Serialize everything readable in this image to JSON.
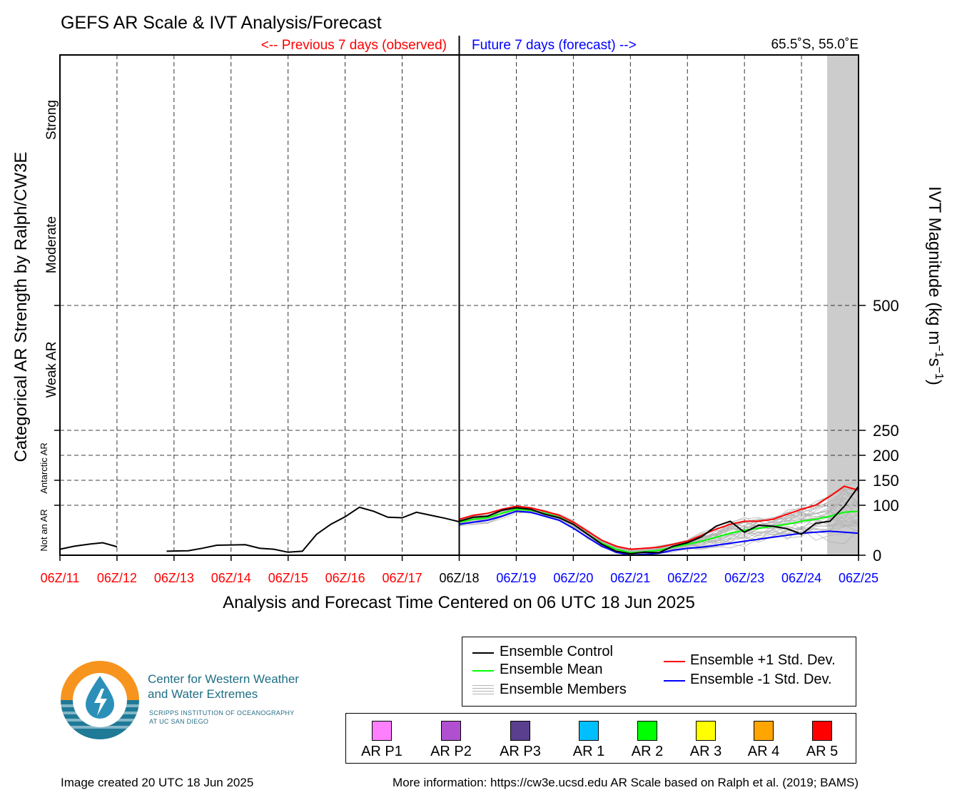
{
  "title": "GEFS AR Scale & IVT Analysis/Forecast",
  "header": {
    "previous_label": "<-- Previous 7 days (observed)",
    "future_label": "Future 7 days (forecast) -->",
    "location": "65.5˚S, 55.0˚E"
  },
  "colors": {
    "previous": "#ff0000",
    "future": "#0000ff",
    "control": "#000000",
    "mean": "#00ff00",
    "plus_std": "#ff0000",
    "minus_std": "#0000ff",
    "members": "#b4b4b4",
    "shade": "#cccccc"
  },
  "chart_data": {
    "type": "line",
    "xlabel": "Analysis and Forecast Time Centered on 06 UTC 18 Jun 2025",
    "ylabel_left": "Categorical AR Strength by Ralph/CW3E",
    "ylabel_right_main": "IVT Magnitude (kg m",
    "ylabel_right_exp1": "−1",
    "ylabel_right_mid": "s",
    "ylabel_right_exp2": "−1",
    "ylabel_right_end": ")",
    "x_unit": "days since 06Z/11",
    "xlim": [
      0,
      14
    ],
    "ylim": [
      0,
      1000
    ],
    "grid": true,
    "x_ticks": [
      {
        "label": "06Z/11",
        "kind": "previous"
      },
      {
        "label": "06Z/12",
        "kind": "previous"
      },
      {
        "label": "06Z/13",
        "kind": "previous"
      },
      {
        "label": "06Z/14",
        "kind": "previous"
      },
      {
        "label": "06Z/15",
        "kind": "previous"
      },
      {
        "label": "06Z/16",
        "kind": "previous"
      },
      {
        "label": "06Z/17",
        "kind": "previous"
      },
      {
        "label": "06Z/18",
        "kind": "current"
      },
      {
        "label": "06Z/19",
        "kind": "future"
      },
      {
        "label": "06Z/20",
        "kind": "future"
      },
      {
        "label": "06Z/21",
        "kind": "future"
      },
      {
        "label": "06Z/22",
        "kind": "future"
      },
      {
        "label": "06Z/23",
        "kind": "future"
      },
      {
        "label": "06Z/24",
        "kind": "future"
      },
      {
        "label": "06Z/25",
        "kind": "future"
      }
    ],
    "y_right_ticks": [
      {
        "value": 0,
        "label": "0"
      },
      {
        "value": 100,
        "label": "100"
      },
      {
        "value": 150,
        "label": "150"
      },
      {
        "value": 200,
        "label": "200"
      },
      {
        "value": 250,
        "label": "250"
      },
      {
        "value": 500,
        "label": "500"
      }
    ],
    "y_categories": [
      {
        "label": "Not an AR",
        "y": 50,
        "size": "small"
      },
      {
        "label": "Antarctic AR",
        "y": 150,
        "size": "small"
      },
      {
        "label": "Weak AR",
        "y": 375,
        "size": "large"
      },
      {
        "label": "Moderate",
        "y": 625,
        "size": "large"
      },
      {
        "label": "Strong",
        "y": 875,
        "size": "large"
      }
    ],
    "forecast_start_x": 7,
    "shaded_region": [
      13.45,
      14
    ],
    "observed": [
      {
        "x": 0,
        "y": 12
      },
      {
        "x": 0.25,
        "y": 18
      },
      {
        "x": 0.5,
        "y": 22
      },
      {
        "x": 0.75,
        "y": 25
      },
      {
        "x": 1.0,
        "y": 17
      },
      {
        "x": 1.25,
        "y": null
      },
      {
        "x": 1.5,
        "y": null
      },
      {
        "x": 1.75,
        "y": null
      },
      {
        "x": 1.87,
        "y": 8
      },
      {
        "x": 2.25,
        "y": 9
      },
      {
        "x": 2.5,
        "y": 14
      },
      {
        "x": 2.75,
        "y": 20
      },
      {
        "x": 3.25,
        "y": 21
      },
      {
        "x": 3.5,
        "y": 14
      },
      {
        "x": 3.75,
        "y": 12
      },
      {
        "x": 4.0,
        "y": 6
      },
      {
        "x": 4.25,
        "y": 8
      },
      {
        "x": 4.5,
        "y": 42
      },
      {
        "x": 4.75,
        "y": 62
      },
      {
        "x": 5.0,
        "y": 77
      },
      {
        "x": 5.25,
        "y": 96
      },
      {
        "x": 5.5,
        "y": 88
      },
      {
        "x": 5.75,
        "y": 76
      },
      {
        "x": 6.0,
        "y": 75
      },
      {
        "x": 6.25,
        "y": 86
      },
      {
        "x": 6.5,
        "y": 80
      },
      {
        "x": 6.75,
        "y": 74
      },
      {
        "x": 7.0,
        "y": 67
      }
    ],
    "series": [
      {
        "name": "Ensemble Control",
        "color_key": "control",
        "x": [
          7.0,
          7.25,
          7.5,
          7.75,
          8.0,
          8.25,
          8.5,
          8.75,
          9.0,
          9.25,
          9.5,
          9.75,
          10.0,
          10.25,
          10.5,
          10.75,
          11.0,
          11.25,
          11.5,
          11.75,
          12.0,
          12.25,
          12.5,
          12.75,
          13.0,
          13.25,
          13.5,
          13.75,
          14.0
        ],
        "y": [
          68,
          76,
          78,
          90,
          95,
          92,
          82,
          75,
          62,
          42,
          22,
          8,
          3,
          6,
          5,
          18,
          25,
          37,
          58,
          68,
          46,
          60,
          58,
          53,
          42,
          64,
          68,
          98,
          138
        ]
      },
      {
        "name": "Ensemble Mean",
        "color_key": "mean",
        "x": [
          7.0,
          7.25,
          7.5,
          7.75,
          8.0,
          8.25,
          8.5,
          8.75,
          9.0,
          9.25,
          9.5,
          9.75,
          10.0,
          10.25,
          10.5,
          10.75,
          11.0,
          11.25,
          11.5,
          11.75,
          12.0,
          12.25,
          12.5,
          12.75,
          13.0,
          13.25,
          13.5,
          13.75,
          14.0
        ],
        "y": [
          66,
          72,
          75,
          84,
          92,
          90,
          84,
          76,
          62,
          42,
          24,
          12,
          5,
          7,
          10,
          16,
          22,
          28,
          36,
          44,
          50,
          54,
          58,
          62,
          68,
          72,
          78,
          86,
          88
        ]
      },
      {
        "name": "Ensemble +1 Std. Dev.",
        "color_key": "plus_std",
        "x": [
          7.0,
          7.25,
          7.5,
          7.75,
          8.0,
          8.25,
          8.5,
          8.75,
          9.0,
          9.25,
          9.5,
          9.75,
          10.0,
          10.25,
          10.5,
          10.75,
          11.0,
          11.25,
          11.5,
          11.75,
          12.0,
          12.25,
          12.5,
          12.75,
          13.0,
          13.25,
          13.5,
          13.75,
          14.0
        ],
        "y": [
          72,
          80,
          84,
          92,
          98,
          95,
          88,
          80,
          66,
          48,
          30,
          18,
          12,
          14,
          16,
          22,
          28,
          40,
          52,
          62,
          68,
          68,
          72,
          82,
          92,
          100,
          118,
          138,
          130
        ]
      },
      {
        "name": "Ensemble -1 Std. Dev.",
        "color_key": "minus_std",
        "x": [
          7.0,
          7.25,
          7.5,
          7.75,
          8.0,
          8.25,
          8.5,
          8.75,
          9.0,
          9.25,
          9.5,
          9.75,
          10.0,
          10.25,
          10.5,
          10.75,
          11.0,
          11.25,
          11.5,
          11.75,
          12.0,
          12.25,
          12.5,
          12.75,
          13.0,
          13.25,
          13.5,
          13.75,
          14.0
        ],
        "y": [
          62,
          66,
          70,
          78,
          88,
          86,
          78,
          70,
          54,
          36,
          18,
          6,
          0,
          2,
          4,
          10,
          14,
          16,
          20,
          24,
          28,
          32,
          36,
          40,
          44,
          46,
          48,
          46,
          44
        ]
      }
    ],
    "members_note_y_range": [
      0,
      210
    ]
  },
  "legend": {
    "control": "Ensemble Control",
    "mean": "Ensemble Mean",
    "members": "Ensemble Members",
    "plus_std": "Ensemble +1 Std. Dev.",
    "minus_std": "Ensemble -1 Std. Dev."
  },
  "categories": [
    {
      "label": "AR P1",
      "color": "#ff80ff"
    },
    {
      "label": "AR P2",
      "color": "#b050d0"
    },
    {
      "label": "AR P3",
      "color": "#5a3f8f"
    },
    {
      "label": "AR 1",
      "color": "#00bfff"
    },
    {
      "label": "AR 2",
      "color": "#00ff00"
    },
    {
      "label": "AR 3",
      "color": "#ffff00"
    },
    {
      "label": "AR 4",
      "color": "#ffa500"
    },
    {
      "label": "AR 5",
      "color": "#ff0000"
    }
  ],
  "logo": {
    "title_line1": "Center for Western Weather",
    "title_line2": "and Water Extremes",
    "sub_line1": "SCRIPPS INSTITUTION OF OCEANOGRAPHY",
    "sub_line2": "AT UC SAN DIEGO"
  },
  "footer": {
    "created": "Image created 20 UTC 18 Jun 2025",
    "info": "More information: https://cw3e.ucsd.edu AR Scale based on Ralph et al. (2019; BAMS)"
  }
}
